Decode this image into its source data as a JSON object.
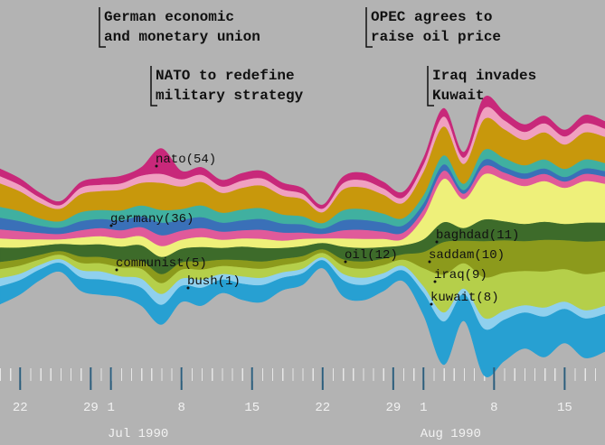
{
  "chart_data": {
    "type": "stream",
    "annotations": [
      {
        "lines": [
          "German economic",
          "and monetary union"
        ]
      },
      {
        "lines": [
          "OPEC agrees to",
          "raise oil price"
        ]
      },
      {
        "lines": [
          "NATO to redefine",
          "military strategy"
        ]
      },
      {
        "lines": [
          "Iraq invades",
          "Kuwait"
        ]
      }
    ],
    "term_labels": [
      "nato(54)",
      "germany(36)",
      "communist(5)",
      "bush(1)",
      "oil(12)",
      "baghdad(11)",
      "saddam(10)",
      "iraq(9)",
      "kuwait(8)"
    ],
    "x": [
      "1990-06-20",
      "1990-06-22",
      "1990-06-24",
      "1990-06-26",
      "1990-06-28",
      "1990-06-30",
      "1990-07-02",
      "1990-07-04",
      "1990-07-06",
      "1990-07-08",
      "1990-07-10",
      "1990-07-12",
      "1990-07-14",
      "1990-07-16",
      "1990-07-18",
      "1990-07-20",
      "1990-07-22",
      "1990-07-24",
      "1990-07-26",
      "1990-07-28",
      "1990-07-30",
      "1990-08-01",
      "1990-08-03",
      "1990-08-05",
      "1990-08-07",
      "1990-08-09",
      "1990-08-11",
      "1990-08-13",
      "1990-08-15",
      "1990-08-17",
      "1990-08-19"
    ],
    "xlim": [
      "1990-06-20",
      "1990-08-19"
    ],
    "xticks": [
      {
        "value": "1990-06-22",
        "label": "22"
      },
      {
        "value": "1990-06-29",
        "label": "29"
      },
      {
        "value": "1990-07-01",
        "label": "1"
      },
      {
        "value": "1990-07-08",
        "label": "8"
      },
      {
        "value": "1990-07-15",
        "label": "15"
      },
      {
        "value": "1990-07-22",
        "label": "22"
      },
      {
        "value": "1990-07-29",
        "label": "29"
      },
      {
        "value": "1990-08-01",
        "label": "1"
      },
      {
        "value": "1990-08-08",
        "label": "8"
      },
      {
        "value": "1990-08-15",
        "label": "15"
      }
    ],
    "month_labels": [
      {
        "value": "1990-07-01",
        "label": "Jul 1990"
      },
      {
        "value": "1990-08-01",
        "label": "Aug 1990"
      }
    ],
    "series": [
      {
        "color": "#27a0d2",
        "values": [
          20,
          16,
          12,
          10,
          15,
          17,
          16,
          20,
          22,
          18,
          20,
          15,
          18,
          19,
          14,
          13,
          9,
          18,
          17,
          14,
          12,
          25,
          48,
          30,
          52,
          46,
          40,
          45,
          38,
          44,
          42
        ]
      },
      {
        "color": "#8fd0ee",
        "values": [
          9,
          7,
          5,
          4,
          8,
          9,
          7,
          10,
          12,
          8,
          9,
          6,
          8,
          8,
          6,
          5,
          3,
          7,
          8,
          6,
          5,
          7,
          10,
          6,
          12,
          10,
          8,
          10,
          8,
          9,
          9
        ]
      },
      {
        "color": "#b5cf4a",
        "values": [
          10,
          9,
          6,
          5,
          8,
          9,
          10,
          11,
          12,
          10,
          11,
          9,
          10,
          10,
          8,
          8,
          5,
          9,
          10,
          9,
          7,
          20,
          42,
          28,
          45,
          42,
          38,
          40,
          36,
          40,
          38
        ]
      },
      {
        "color": "#8c9a1c",
        "values": [
          8,
          7,
          5,
          4,
          7,
          7,
          8,
          9,
          10,
          8,
          9,
          7,
          8,
          8,
          7,
          6,
          4,
          7,
          8,
          7,
          6,
          18,
          36,
          25,
          40,
          36,
          33,
          35,
          32,
          36,
          34
        ]
      },
      {
        "color": "#3d6b2a",
        "values": [
          16,
          13,
          10,
          8,
          13,
          14,
          15,
          17,
          19,
          15,
          16,
          13,
          15,
          15,
          12,
          11,
          7,
          14,
          15,
          13,
          10,
          14,
          22,
          14,
          24,
          21,
          19,
          20,
          18,
          21,
          20
        ]
      },
      {
        "color": "#eef07a",
        "values": [
          10,
          9,
          7,
          5,
          8,
          9,
          9,
          10,
          12,
          10,
          11,
          9,
          9,
          10,
          8,
          8,
          5,
          9,
          10,
          9,
          7,
          25,
          48,
          32,
          50,
          46,
          42,
          45,
          40,
          46,
          43
        ]
      },
      {
        "color": "#e05a9a",
        "values": [
          10,
          9,
          7,
          6,
          8,
          9,
          9,
          10,
          12,
          10,
          10,
          9,
          9,
          10,
          9,
          7,
          5,
          9,
          10,
          8,
          7,
          8,
          9,
          6,
          9,
          8,
          8,
          8,
          7,
          8,
          8
        ]
      },
      {
        "color": "#3a70b8",
        "values": [
          13,
          11,
          8,
          7,
          10,
          10,
          11,
          12,
          14,
          12,
          12,
          10,
          11,
          12,
          10,
          9,
          6,
          11,
          11,
          10,
          8,
          7,
          7,
          4,
          7,
          6,
          6,
          6,
          5,
          6,
          6
        ]
      },
      {
        "color": "#40b0a0",
        "values": [
          12,
          11,
          8,
          7,
          10,
          10,
          11,
          12,
          14,
          12,
          13,
          11,
          12,
          12,
          10,
          9,
          6,
          11,
          12,
          10,
          8,
          9,
          10,
          7,
          11,
          10,
          9,
          10,
          9,
          10,
          9
        ]
      },
      {
        "color": "#c8980c",
        "values": [
          26,
          22,
          17,
          14,
          20,
          21,
          23,
          25,
          30,
          25,
          26,
          22,
          24,
          25,
          21,
          19,
          12,
          23,
          24,
          21,
          17,
          26,
          32,
          22,
          34,
          32,
          28,
          30,
          27,
          30,
          29
        ]
      },
      {
        "color": "#f0a0c0",
        "values": [
          8,
          7,
          6,
          4,
          7,
          7,
          7,
          8,
          10,
          8,
          8,
          7,
          8,
          8,
          7,
          6,
          4,
          7,
          8,
          7,
          6,
          8,
          11,
          7,
          12,
          10,
          9,
          10,
          9,
          10,
          9
        ]
      },
      {
        "color": "#c8287a",
        "values": [
          8,
          7,
          5,
          4,
          6,
          7,
          8,
          9,
          28,
          9,
          8,
          7,
          8,
          8,
          7,
          6,
          4,
          7,
          8,
          7,
          6,
          7,
          9,
          6,
          12,
          9,
          8,
          8,
          7,
          9,
          8
        ]
      }
    ]
  }
}
